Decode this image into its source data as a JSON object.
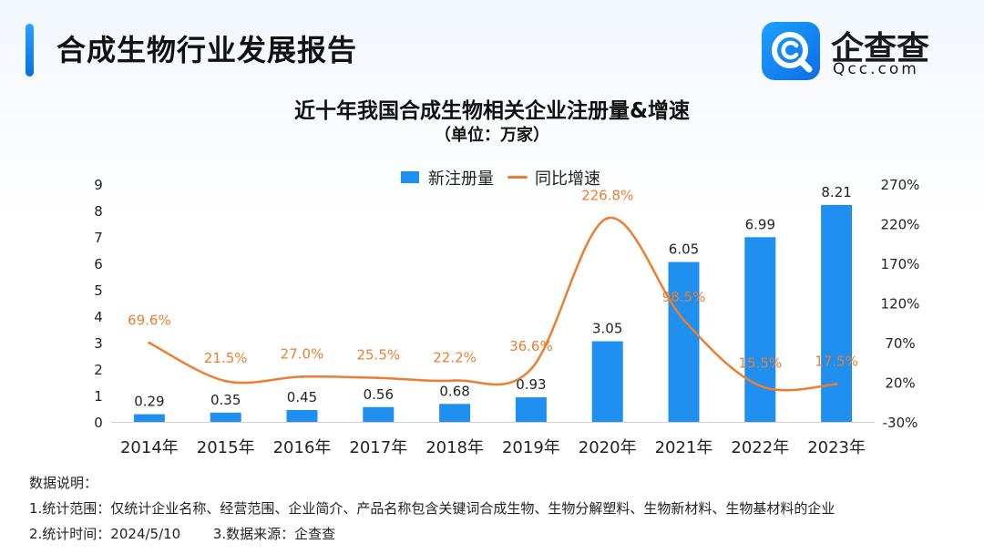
{
  "header": {
    "title": "合成生物行业发展报告"
  },
  "logo": {
    "name": "企查查",
    "subtitle": "Qcc.com",
    "accent": "#0b6ee6"
  },
  "chart_data": {
    "type": "bar",
    "title": "近十年我国合成生物相关企业注册量&增速",
    "subtitle": "（单位：万家）",
    "categories": [
      "2014年",
      "2015年",
      "2016年",
      "2017年",
      "2018年",
      "2019年",
      "2020年",
      "2021年",
      "2022年",
      "2023年"
    ],
    "series": [
      {
        "name": "新注册量",
        "type": "bar",
        "axis": "left",
        "color": "#1f8ff0",
        "values": [
          0.29,
          0.35,
          0.45,
          0.56,
          0.68,
          0.93,
          3.05,
          6.05,
          6.99,
          8.21
        ],
        "labels": [
          "0.29",
          "0.35",
          "0.45",
          "0.56",
          "0.68",
          "0.93",
          "3.05",
          "6.05",
          "6.99",
          "8.21"
        ]
      },
      {
        "name": "同比增速",
        "type": "line",
        "axis": "right",
        "color": "#ed7d31",
        "values": [
          69.6,
          21.5,
          27.0,
          25.5,
          22.2,
          36.6,
          226.8,
          98.5,
          15.5,
          17.5
        ],
        "labels": [
          "69.6%",
          "21.5%",
          "27.0%",
          "25.5%",
          "22.2%",
          "36.6%",
          "226.8%",
          "98.5%",
          "15.5%",
          "17.5%"
        ]
      }
    ],
    "y_left": {
      "min": 0,
      "max": 9,
      "ticks": [
        "0",
        "1",
        "2",
        "3",
        "4",
        "5",
        "6",
        "7",
        "8",
        "9"
      ]
    },
    "y_right": {
      "min": -30,
      "max": 270,
      "ticks": [
        "-30%",
        "20%",
        "70%",
        "120%",
        "170%",
        "220%",
        "270%"
      ]
    },
    "grid": false,
    "legend_position": "top-center"
  },
  "notes": {
    "heading": "数据说明：",
    "line1": "1.统计范围：仅统计企业名称、经营范围、企业简介、产品名称包含关键词合成生物、生物分解塑料、生物新材料、生物基材料的企业",
    "line2": "2.统计时间：2024/5/10",
    "line3": "3.数据来源：企查查"
  }
}
